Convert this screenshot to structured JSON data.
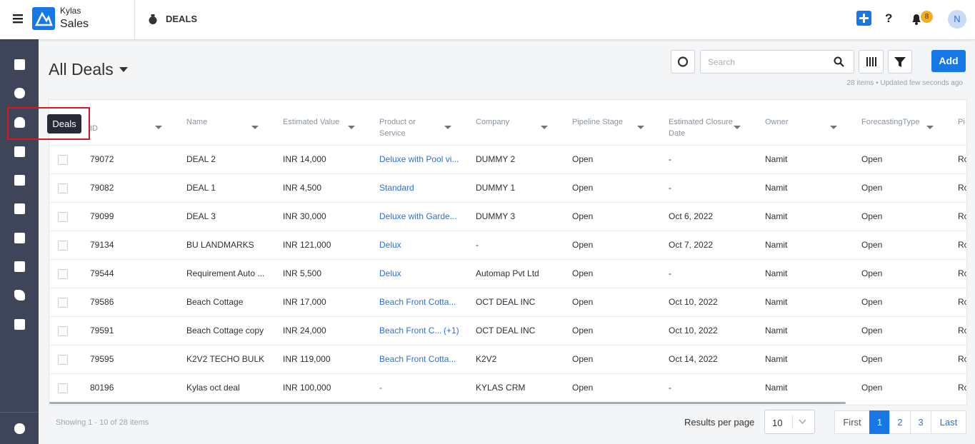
{
  "header": {
    "brand_top": "Kylas",
    "brand_bottom": "Sales",
    "section": "DEALS",
    "notification_count": "8",
    "avatar": "N"
  },
  "sidebar": {
    "tooltip": "Deals"
  },
  "page": {
    "title": "All Deals",
    "search_placeholder": "Search",
    "add": "Add",
    "meta": "28 items • Updated few seconds ago"
  },
  "table": {
    "columns": [
      "ID",
      "Name",
      "Estimated Value",
      "Product or Service",
      "Company",
      "Pipeline Stage",
      "Estimated Closure Date",
      "Owner",
      "ForecastingType",
      "Pi"
    ],
    "rows": [
      [
        "79072",
        "DEAL 2",
        "INR 14,000",
        "Deluxe with Pool vi...",
        "DUMMY 2",
        "Open",
        "-",
        "Namit",
        "Open",
        "Ro"
      ],
      [
        "79082",
        "DEAL 1",
        "INR 4,500",
        "Standard",
        "DUMMY 1",
        "Open",
        "-",
        "Namit",
        "Open",
        "Ro"
      ],
      [
        "79099",
        "DEAL 3",
        "INR 30,000",
        "Deluxe with Garde...",
        "DUMMY 3",
        "Open",
        "Oct 6, 2022",
        "Namit",
        "Open",
        "Ro"
      ],
      [
        "79134",
        "BU LANDMARKS",
        "INR 121,000",
        "Delux",
        "-",
        "Open",
        "Oct 7, 2022",
        "Namit",
        "Open",
        "Ro"
      ],
      [
        "79544",
        "Requirement Auto ...",
        "INR 5,500",
        "Delux",
        "Automap Pvt Ltd",
        "Open",
        "-",
        "Namit",
        "Open",
        "Ro"
      ],
      [
        "79586",
        "Beach Cottage",
        "INR 17,000",
        "Beach Front Cotta...",
        "OCT DEAL INC",
        "Open",
        "Oct 10, 2022",
        "Namit",
        "Open",
        "Ro"
      ],
      [
        "79591",
        "Beach Cottage copy",
        "INR 24,000",
        [
          "Beach Front C...",
          "(+1)"
        ],
        "OCT DEAL INC",
        "Open",
        "Oct 10, 2022",
        "Namit",
        "Open",
        "Ro"
      ],
      [
        "79595",
        "K2V2 TECHO BULK",
        "INR 119,000",
        "Beach Front Cotta...",
        "K2V2",
        "Open",
        "Oct 14, 2022",
        "Namit",
        "Open",
        "Ro"
      ],
      [
        "80196",
        "Kylas oct deal",
        "INR 100,000",
        "-",
        "KYLAS CRM",
        "Open",
        "-",
        "Namit",
        "Open",
        "Ro"
      ]
    ]
  },
  "footer": {
    "showing": "Showing 1 - 10 of 28 items",
    "results_label": "Results per page",
    "per_page": "10",
    "pages": [
      "First",
      "1",
      "2",
      "3",
      "Last"
    ]
  }
}
